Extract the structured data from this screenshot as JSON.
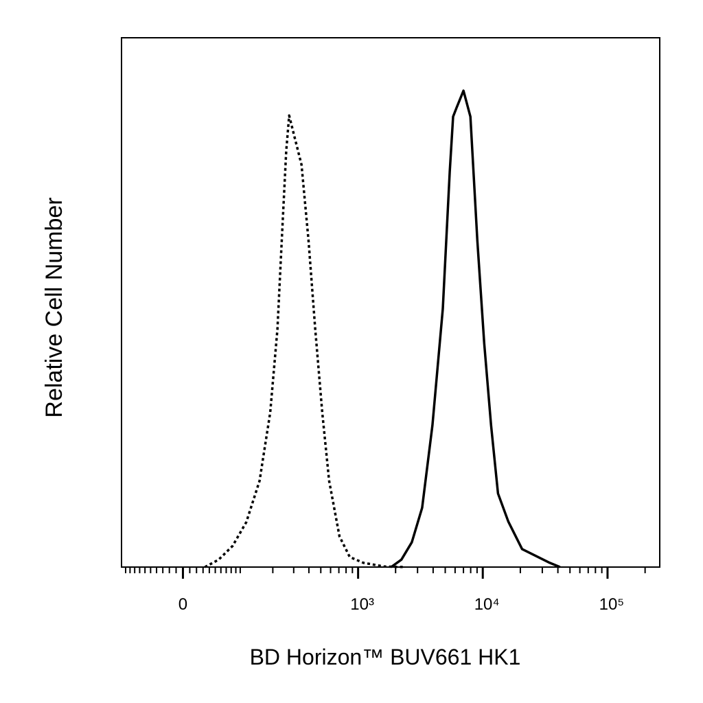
{
  "chart_data": {
    "type": "line",
    "xlabel": "BD Horizon™ BUV661 HK1",
    "ylabel": "Relative Cell Number",
    "xscale": "arcsinh",
    "xlinthresh": 79,
    "xlim": [
      -110,
      262144
    ],
    "ylim": [
      0,
      100
    ],
    "xticks": [
      0,
      {
        "value": 1000,
        "label": "10³"
      },
      {
        "value": 10000,
        "label": "10⁴"
      },
      {
        "value": 100000,
        "label": "10⁵"
      }
    ],
    "xminor_ticks": [
      -100,
      -90,
      -80,
      -70,
      -60,
      -50,
      -40,
      -30,
      -20,
      -10,
      10,
      20,
      30,
      40,
      50,
      60,
      70,
      80,
      90,
      100,
      200,
      300,
      400,
      500,
      600,
      700,
      800,
      900,
      2000,
      3000,
      4000,
      5000,
      6000,
      7000,
      8000,
      9000,
      20000,
      30000,
      40000,
      50000,
      60000,
      70000,
      80000,
      90000,
      200000
    ],
    "series": [
      {
        "color": "#000000",
        "line_style": "dotted",
        "x": [
          33,
          56,
          83,
          115,
          153,
          190,
          219,
          240,
          260,
          275,
          305,
          348,
          397,
          451,
          514,
          584,
          708,
          857,
          1102,
          1620,
          2378
        ],
        "values": [
          0,
          1.4,
          4.0,
          8.5,
          16.3,
          29.2,
          44.9,
          63.0,
          78.6,
          85.3,
          81.2,
          76.0,
          61.7,
          44.9,
          29.2,
          16.3,
          5.8,
          1.9,
          0.8,
          0.1,
          0
        ]
      },
      {
        "color": "#000000",
        "line_style": "solid",
        "x": [
          1841,
          2228,
          2700,
          3265,
          3950,
          4780,
          5435,
          5785,
          6170,
          7000,
          7955,
          9040,
          10270,
          11660,
          13240,
          16020,
          20670,
          26670,
          34410,
          41630
        ],
        "values": [
          0,
          1.4,
          4.7,
          11.2,
          26.8,
          48.8,
          74.7,
          85.1,
          86.8,
          90.0,
          85.1,
          61.7,
          42.3,
          26.8,
          13.9,
          8.6,
          3.4,
          2.1,
          0.8,
          0
        ]
      }
    ]
  }
}
